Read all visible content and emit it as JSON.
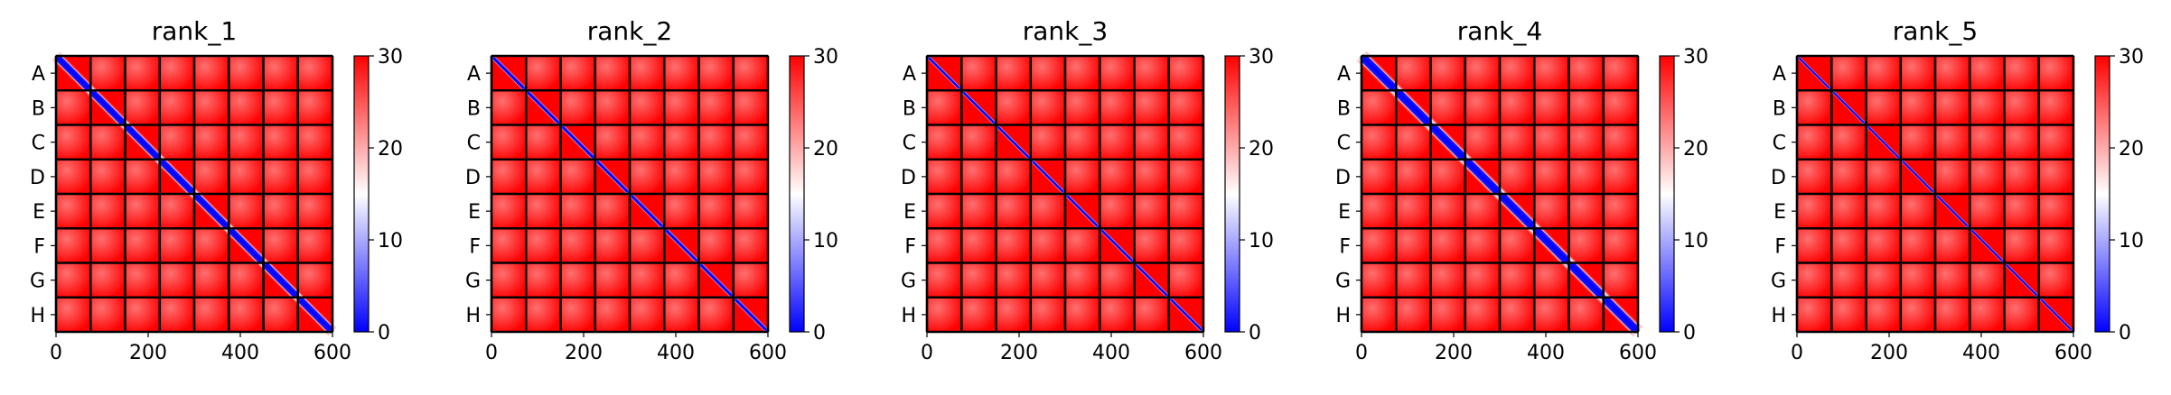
{
  "chart_data": [
    {
      "type": "heatmap",
      "title": "rank_1",
      "ytick_labels": [
        "A",
        "B",
        "C",
        "D",
        "E",
        "F",
        "G",
        "H"
      ],
      "x_ticks": [
        0,
        200,
        400,
        600
      ],
      "xlim": [
        0,
        600
      ],
      "colorbar": {
        "ticks": [
          0,
          10,
          20,
          30
        ],
        "range": [
          0,
          30
        ],
        "colormap": "bwr"
      },
      "block_size": 75,
      "n_blocks": 8,
      "diagonal_band_width": 26
    },
    {
      "type": "heatmap",
      "title": "rank_2",
      "ytick_labels": [
        "A",
        "B",
        "C",
        "D",
        "E",
        "F",
        "G",
        "H"
      ],
      "x_ticks": [
        0,
        200,
        400,
        600
      ],
      "xlim": [
        0,
        600
      ],
      "colorbar": {
        "ticks": [
          0,
          10,
          20,
          30
        ],
        "range": [
          0,
          30
        ],
        "colormap": "bwr"
      },
      "block_size": 75,
      "n_blocks": 8,
      "diagonal_band_width": 12
    },
    {
      "type": "heatmap",
      "title": "rank_3",
      "ytick_labels": [
        "A",
        "B",
        "C",
        "D",
        "E",
        "F",
        "G",
        "H"
      ],
      "x_ticks": [
        0,
        200,
        400,
        600
      ],
      "xlim": [
        0,
        600
      ],
      "colorbar": {
        "ticks": [
          0,
          10,
          20,
          30
        ],
        "range": [
          0,
          30
        ],
        "colormap": "bwr"
      },
      "block_size": 75,
      "n_blocks": 8,
      "diagonal_band_width": 10
    },
    {
      "type": "heatmap",
      "title": "rank_4",
      "ytick_labels": [
        "A",
        "B",
        "C",
        "D",
        "E",
        "F",
        "G",
        "H"
      ],
      "x_ticks": [
        0,
        200,
        400,
        600
      ],
      "xlim": [
        0,
        600
      ],
      "colorbar": {
        "ticks": [
          0,
          10,
          20,
          30
        ],
        "range": [
          0,
          30
        ],
        "colormap": "bwr"
      },
      "block_size": 75,
      "n_blocks": 8,
      "diagonal_band_width": 32
    },
    {
      "type": "heatmap",
      "title": "rank_5",
      "ytick_labels": [
        "A",
        "B",
        "C",
        "D",
        "E",
        "F",
        "G",
        "H"
      ],
      "x_ticks": [
        0,
        200,
        400,
        600
      ],
      "xlim": [
        0,
        600
      ],
      "colorbar": {
        "ticks": [
          0,
          10,
          20,
          30
        ],
        "range": [
          0,
          30
        ],
        "colormap": "bwr"
      },
      "block_size": 75,
      "n_blocks": 8,
      "diagonal_band_width": 8
    }
  ],
  "colors": {
    "low": "#0000ff",
    "mid": "#ffffff",
    "high": "#ff0000",
    "block_border": "#000000"
  }
}
